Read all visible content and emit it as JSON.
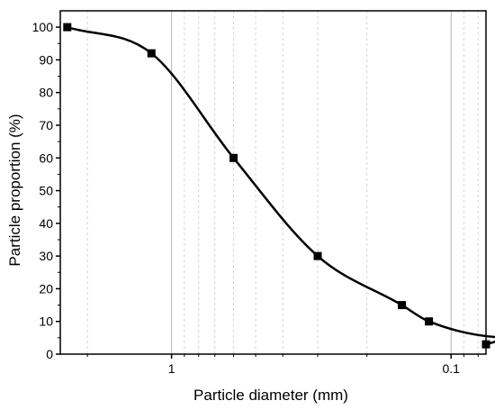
{
  "chart_data": {
    "type": "line",
    "title": "",
    "xlabel": "Particle diameter (mm)",
    "ylabel": "Particle proportion (%)",
    "x_scale": "log",
    "x_reversed": true,
    "xlim": [
      2.5,
      0.075
    ],
    "ylim": [
      0,
      105
    ],
    "x_ticks": [
      {
        "value": 1,
        "label": "1"
      },
      {
        "value": 0.1,
        "label": "0.1"
      }
    ],
    "y_ticks": [
      0,
      10,
      20,
      30,
      40,
      50,
      60,
      70,
      80,
      90,
      100
    ],
    "grid": "vertical log grid (major solid, minor dashed)",
    "marker": "square",
    "line_color": "#000000",
    "series": [
      {
        "x": [
          2.36,
          1.18,
          0.6,
          0.3,
          0.15,
          0.12,
          0.06,
          0.075
        ],
        "y": [
          100,
          92,
          60,
          30,
          15,
          10,
          5,
          3
        ]
      }
    ]
  }
}
